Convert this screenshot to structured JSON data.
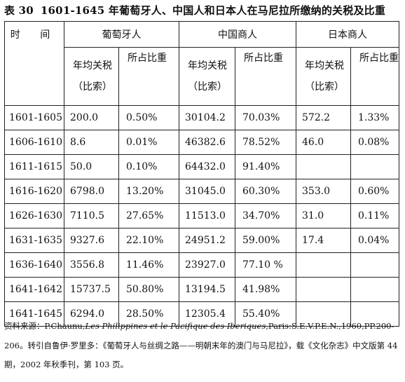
{
  "caption": {
    "number": "表 30",
    "title": "1601-1645 年葡萄牙人、中国人和日本人在马尼拉所缴纳的关税及比重"
  },
  "table": {
    "time_header": "时  间",
    "groups": [
      "葡萄牙人",
      "中国商人",
      "日本商人"
    ],
    "col_annual": "年均关税",
    "col_unit": "（比索）",
    "col_share": "所占比重",
    "rows": [
      [
        "1601-1605",
        "200.0",
        "0.50%",
        "30104.2",
        "70.03%",
        "572.2",
        "1.33%"
      ],
      [
        "1606-1610",
        "8.6",
        "0.01%",
        "46382.6",
        "78.52%",
        "46.0",
        "0.08%"
      ],
      [
        "1611-1615",
        "50.0",
        "0.10%",
        "64432.0",
        "91.40%",
        "",
        ""
      ],
      [
        "1616-1620",
        "6798.0",
        "13.20%",
        "31045.0",
        "60.30%",
        "353.0",
        "0.60%"
      ],
      [
        "1626-1630",
        "7110.5",
        "27.65%",
        "11513.0",
        "34.70%",
        "31.0",
        "0.11%"
      ],
      [
        "1631-1635",
        "9327.6",
        "22.10%",
        "24951.2",
        "59.00%",
        "17.4",
        "0.04%"
      ],
      [
        "1636-1640",
        "3556.8",
        "11.46%",
        "23927.0",
        "77.10 %",
        "",
        ""
      ],
      [
        "1641-1642",
        "15737.5",
        "50.80%",
        "13194.5",
        "41.98%",
        "",
        ""
      ],
      [
        "1641-1645",
        "6294.0",
        "28.50%",
        "12305.4",
        "55.40%",
        "",
        ""
      ]
    ]
  },
  "source": {
    "prefix": "资料来源：P.Chaunu,",
    "italic": "Les Philippines et le Pacifique des Iberiques",
    "rest": ",Paris:S.E.V.P.E.N.,1960,PP.200-206。转引自鲁伊·罗里多：《葡萄牙人与丝绸之路——明朝末年的澳门与马尼拉》，载《文化杂志》中文版第 44 期，2002 年秋季刊，第 103 页。"
  }
}
